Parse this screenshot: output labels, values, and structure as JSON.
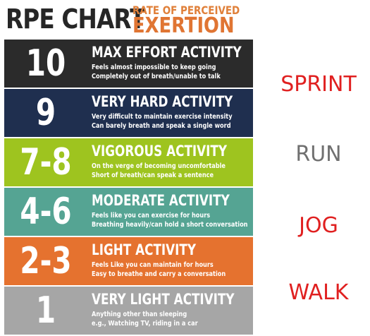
{
  "header": {
    "title": "RPE CHART",
    "subtitle_line1": "RATE OF PERCEIVED",
    "subtitle_line2": "EXERTION"
  },
  "levels": [
    {
      "number": "10",
      "name": "MAX EFFORT ACTIVITY",
      "desc1": "Feels almost impossible to keep going",
      "desc2": "Completely out of breath/unable to talk",
      "color": "#2b2b2b"
    },
    {
      "number": "9",
      "name": "VERY HARD ACTIVITY",
      "desc1": "Very difficult to maintain exercise intensity",
      "desc2": "Can barely breath and speak a single word",
      "color": "#1f2f4f"
    },
    {
      "number": "7-8",
      "name": "VIGOROUS ACTIVITY",
      "desc1": "On the verge of becoming uncomfortable",
      "desc2": "Short of breath/can speak a sentence",
      "color": "#9ec41f"
    },
    {
      "number": "4-6",
      "name": "MODERATE ACTIVITY",
      "desc1": "Feels like you can exercise for hours",
      "desc2": "Breathing heavily/can hold a short conversation",
      "color": "#55a493"
    },
    {
      "number": "2-3",
      "name": "LIGHT ACTIVITY",
      "desc1": "Feels Like you can maintain for hours",
      "desc2": "Easy to breathe and carry a conversation",
      "color": "#e5722f"
    },
    {
      "number": "1",
      "name": "VERY LIGHT ACTIVITY",
      "desc1": "Anything other than sleeping",
      "desc2": "e.g., Watching TV, riding in a car",
      "color": "#a6a6a6"
    }
  ],
  "side_labels": {
    "sprint": "SPRINT",
    "run": "RUN",
    "jog": "JOG",
    "walk": "WALK"
  },
  "colors": {
    "title": "#262626",
    "subtitle": "#e07533",
    "side_red": "#e02020",
    "side_gray": "#707070"
  }
}
